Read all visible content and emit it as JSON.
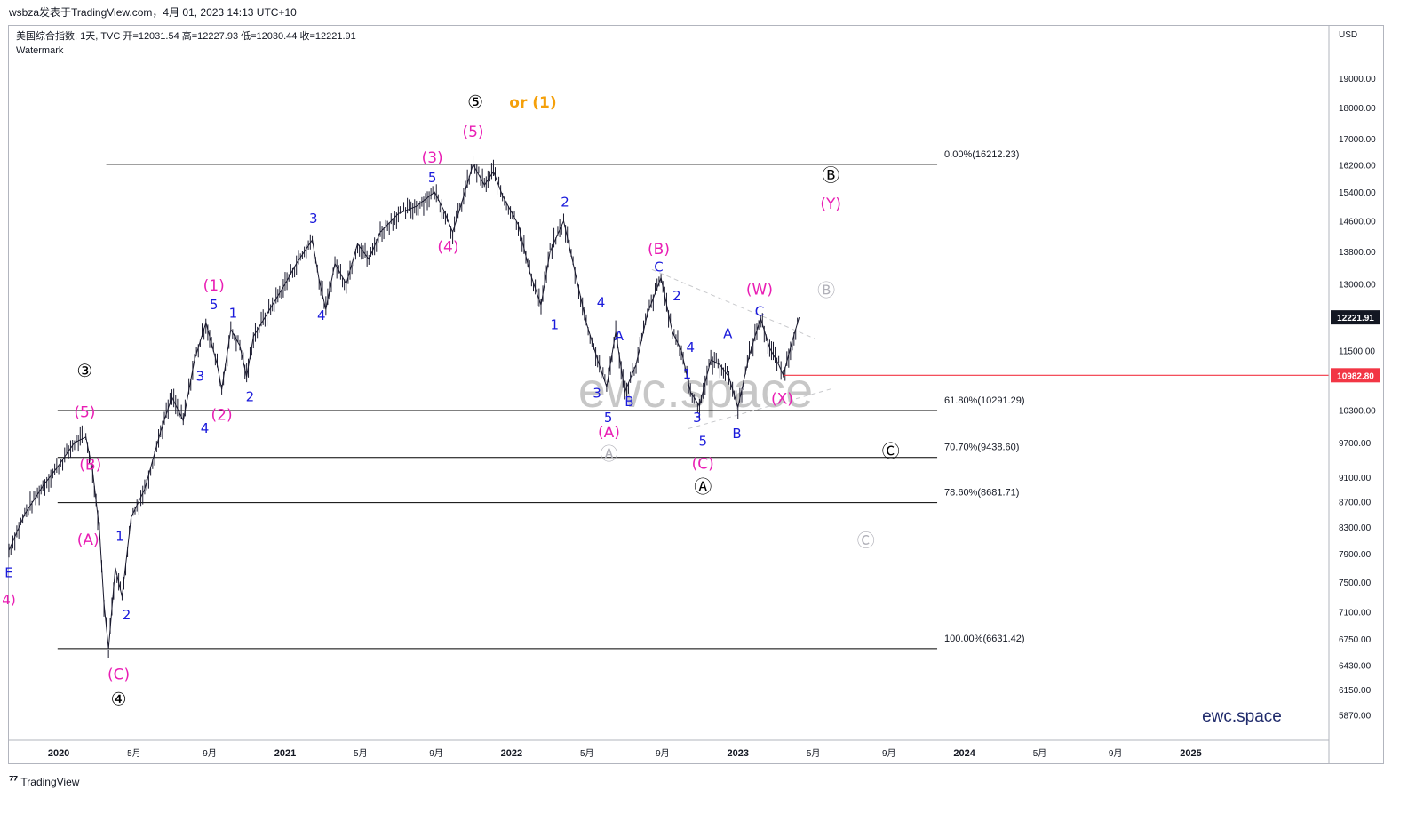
{
  "header": {
    "publisher_line": "wsbza发表于TradingView.com，4月 01, 2023 14:13 UTC+10"
  },
  "legend": {
    "symbol_line": "美国综合指数, 1天, TVC  开=12031.54  高=12227.93  低=12030.44  收=12221.91",
    "watermark_label": "Watermark"
  },
  "watermark": {
    "big": "ewc.space",
    "small": "ewc.space"
  },
  "footer": {
    "brand": "TradingView"
  },
  "colors": {
    "price_bars": "#1a1a2e",
    "fib_lines": "#000000",
    "wave_blue": "#1a1adb",
    "wave_magenta": "#e91eb4",
    "wave_orange": "#f5a00a",
    "wave_black": "#000000",
    "wave_gray": "#b0b0b8",
    "support_line": "#f23645",
    "last_price_bg": "#131722",
    "support_label_bg": "#f23645"
  },
  "chart_data": {
    "type": "line",
    "title": "美国综合指数",
    "currency": "USD",
    "interval": "1天",
    "x_axis": {
      "labels": [
        {
          "t": 2020.0,
          "label": "2020"
        },
        {
          "t": 2020.333,
          "label": "5月"
        },
        {
          "t": 2020.667,
          "label": "9月"
        },
        {
          "t": 2021.0,
          "label": "2021"
        },
        {
          "t": 2021.333,
          "label": "5月"
        },
        {
          "t": 2021.667,
          "label": "9月"
        },
        {
          "t": 2022.0,
          "label": "2022"
        },
        {
          "t": 2022.333,
          "label": "5月"
        },
        {
          "t": 2022.667,
          "label": "9月"
        },
        {
          "t": 2023.0,
          "label": "2023"
        },
        {
          "t": 2023.333,
          "label": "5月"
        },
        {
          "t": 2023.667,
          "label": "9月"
        },
        {
          "t": 2024.0,
          "label": "2024"
        },
        {
          "t": 2024.333,
          "label": "5月"
        },
        {
          "t": 2024.667,
          "label": "9月"
        },
        {
          "t": 2025.0,
          "label": "2025"
        }
      ],
      "range": [
        2019.78,
        2025.61
      ]
    },
    "y_axis": {
      "scale": "log",
      "range": [
        5600,
        20900
      ],
      "ticks": [
        5870,
        6150,
        6430,
        6750,
        7100,
        7500,
        7900,
        8300,
        8700,
        9100,
        9700,
        10300,
        11500,
        13000,
        13800,
        14600,
        15400,
        16200,
        17000,
        18000,
        19000
      ],
      "unit_label": "USD"
    },
    "price_path": [
      [
        2019.78,
        7950
      ],
      [
        2019.85,
        8500
      ],
      [
        2019.93,
        8950
      ],
      [
        2020.0,
        9300
      ],
      [
        2020.07,
        9700
      ],
      [
        2020.12,
        9800
      ],
      [
        2020.15,
        9200
      ],
      [
        2020.18,
        8250
      ],
      [
        2020.2,
        7200
      ],
      [
        2020.22,
        6631.42
      ],
      [
        2020.25,
        7700
      ],
      [
        2020.28,
        7300
      ],
      [
        2020.32,
        8450
      ],
      [
        2020.38,
        8900
      ],
      [
        2020.45,
        9900
      ],
      [
        2020.5,
        10550
      ],
      [
        2020.55,
        10100
      ],
      [
        2020.6,
        11300
      ],
      [
        2020.65,
        12100
      ],
      [
        2020.7,
        11200
      ],
      [
        2020.72,
        10700
      ],
      [
        2020.76,
        11950
      ],
      [
        2020.8,
        11600
      ],
      [
        2020.83,
        10950
      ],
      [
        2020.86,
        11800
      ],
      [
        2020.92,
        12300
      ],
      [
        2021.0,
        13000
      ],
      [
        2021.05,
        13500
      ],
      [
        2021.12,
        14100
      ],
      [
        2021.15,
        13100
      ],
      [
        2021.18,
        12400
      ],
      [
        2021.22,
        13500
      ],
      [
        2021.27,
        13000
      ],
      [
        2021.32,
        14000
      ],
      [
        2021.37,
        13600
      ],
      [
        2021.42,
        14300
      ],
      [
        2021.5,
        14800
      ],
      [
        2021.58,
        15000
      ],
      [
        2021.66,
        15400
      ],
      [
        2021.7,
        14900
      ],
      [
        2021.74,
        14300
      ],
      [
        2021.78,
        15100
      ],
      [
        2021.83,
        16212.23
      ],
      [
        2021.88,
        15600
      ],
      [
        2021.92,
        16000
      ],
      [
        2021.96,
        15300
      ],
      [
        2022.03,
        14500
      ],
      [
        2022.08,
        13300
      ],
      [
        2022.13,
        12500
      ],
      [
        2022.17,
        13800
      ],
      [
        2022.23,
        14600
      ],
      [
        2022.28,
        13300
      ],
      [
        2022.33,
        12100
      ],
      [
        2022.38,
        11300
      ],
      [
        2022.42,
        10750
      ],
      [
        2022.46,
        11900
      ],
      [
        2022.5,
        10650
      ],
      [
        2022.55,
        11200
      ],
      [
        2022.6,
        12300
      ],
      [
        2022.66,
        13150
      ],
      [
        2022.71,
        11900
      ],
      [
        2022.75,
        11500
      ],
      [
        2022.79,
        10650
      ],
      [
        2022.83,
        10380
      ],
      [
        2022.88,
        11300
      ],
      [
        2022.92,
        11200
      ],
      [
        2022.96,
        10950
      ],
      [
        2023.0,
        10350
      ],
      [
        2023.05,
        11400
      ],
      [
        2023.1,
        12200
      ],
      [
        2023.14,
        11550
      ],
      [
        2023.18,
        11200
      ],
      [
        2023.2,
        10982.8
      ],
      [
        2023.24,
        11700
      ],
      [
        2023.27,
        12221.91
      ]
    ],
    "last_price": {
      "value": 12221.91,
      "label": "12221.91"
    },
    "support_level": {
      "value": 10982.8,
      "label": "10982.80"
    },
    "fib_levels": [
      {
        "label": "0.00%(16212.23)",
        "value": 16212.23
      },
      {
        "label": "61.80%(10291.29)",
        "value": 10291.29
      },
      {
        "label": "70.70%(9438.60)",
        "value": 9438.6
      },
      {
        "label": "78.60%(8681.71)",
        "value": 8681.71
      },
      {
        "label": "100.00%(6631.42)",
        "value": 6631.42
      }
    ],
    "triangle_lines": [
      {
        "from": [
          2022.62,
          13350
        ],
        "to": [
          2023.34,
          11750
        ]
      },
      {
        "from": [
          2022.78,
          9950
        ],
        "to": [
          2023.42,
          10720
        ]
      }
    ],
    "wave_labels": [
      {
        "t": 2020.115,
        "v": 11050,
        "text": "③",
        "color": "black",
        "circled": true
      },
      {
        "t": 2020.115,
        "v": 10250,
        "text": "(5)",
        "color": "magenta"
      },
      {
        "t": 2020.14,
        "v": 9300,
        "text": "(B)",
        "color": "magenta"
      },
      {
        "t": 2020.13,
        "v": 8100,
        "text": "(A)",
        "color": "magenta"
      },
      {
        "t": 2020.27,
        "v": 8150,
        "text": "1",
        "color": "blue"
      },
      {
        "t": 2020.3,
        "v": 7050,
        "text": "2",
        "color": "blue"
      },
      {
        "t": 2020.265,
        "v": 6320,
        "text": "(C)",
        "color": "magenta"
      },
      {
        "t": 2020.265,
        "v": 6030,
        "text": "④",
        "color": "black",
        "circled": true
      },
      {
        "t": 2020.625,
        "v": 10950,
        "text": "3",
        "color": "blue"
      },
      {
        "t": 2020.645,
        "v": 9950,
        "text": "4",
        "color": "blue"
      },
      {
        "t": 2020.685,
        "v": 12500,
        "text": "5",
        "color": "blue"
      },
      {
        "t": 2020.685,
        "v": 12950,
        "text": "(1)",
        "color": "magenta"
      },
      {
        "t": 2020.77,
        "v": 12300,
        "text": "1",
        "color": "blue"
      },
      {
        "t": 2020.845,
        "v": 10550,
        "text": "2",
        "color": "blue"
      },
      {
        "t": 2020.72,
        "v": 10200,
        "text": "(2)",
        "color": "magenta"
      },
      {
        "t": 2021.125,
        "v": 14650,
        "text": "3",
        "color": "blue"
      },
      {
        "t": 2021.16,
        "v": 12250,
        "text": "4",
        "color": "blue"
      },
      {
        "t": 2021.65,
        "v": 15800,
        "text": "5",
        "color": "blue"
      },
      {
        "t": 2021.65,
        "v": 16400,
        "text": "(3)",
        "color": "magenta"
      },
      {
        "t": 2021.72,
        "v": 13900,
        "text": "(4)",
        "color": "magenta"
      },
      {
        "t": 2021.83,
        "v": 17200,
        "text": "(5)",
        "color": "magenta"
      },
      {
        "t": 2021.84,
        "v": 18150,
        "text": "⑤",
        "color": "black",
        "circled": true
      },
      {
        "t": 2021.99,
        "v": 18150,
        "text": "or (1)",
        "color": "orange"
      },
      {
        "t": 2022.236,
        "v": 15100,
        "text": "2",
        "color": "blue"
      },
      {
        "t": 2022.19,
        "v": 12050,
        "text": "1",
        "color": "blue"
      },
      {
        "t": 2022.395,
        "v": 12550,
        "text": "4",
        "color": "blue"
      },
      {
        "t": 2022.378,
        "v": 10620,
        "text": "3",
        "color": "blue"
      },
      {
        "t": 2022.427,
        "v": 10150,
        "text": "5",
        "color": "blue"
      },
      {
        "t": 2022.475,
        "v": 11800,
        "text": "A",
        "color": "blue"
      },
      {
        "t": 2022.52,
        "v": 10450,
        "text": "B",
        "color": "blue"
      },
      {
        "t": 2022.43,
        "v": 9880,
        "text": "(A)",
        "color": "magenta"
      },
      {
        "t": 2022.43,
        "v": 9480,
        "text": "Ⓐ",
        "color": "gray",
        "circled": true
      },
      {
        "t": 2022.65,
        "v": 13850,
        "text": "(B)",
        "color": "magenta"
      },
      {
        "t": 2022.65,
        "v": 13400,
        "text": "C",
        "color": "blue"
      },
      {
        "t": 2022.73,
        "v": 12700,
        "text": "2",
        "color": "blue"
      },
      {
        "t": 2022.79,
        "v": 11550,
        "text": "4",
        "color": "blue"
      },
      {
        "t": 2022.775,
        "v": 11000,
        "text": "1",
        "color": "blue"
      },
      {
        "t": 2022.82,
        "v": 10150,
        "text": "3",
        "color": "blue"
      },
      {
        "t": 2022.845,
        "v": 9720,
        "text": "5",
        "color": "blue"
      },
      {
        "t": 2022.845,
        "v": 9320,
        "text": "(C)",
        "color": "magenta"
      },
      {
        "t": 2022.845,
        "v": 8920,
        "text": "Ⓐ",
        "color": "black",
        "circled": true
      },
      {
        "t": 2022.955,
        "v": 11850,
        "text": "A",
        "color": "blue"
      },
      {
        "t": 2022.995,
        "v": 9850,
        "text": "B",
        "color": "blue"
      },
      {
        "t": 2023.095,
        "v": 12850,
        "text": "(W)",
        "color": "magenta"
      },
      {
        "t": 2023.095,
        "v": 12350,
        "text": "C",
        "color": "blue"
      },
      {
        "t": 2023.195,
        "v": 10500,
        "text": "(X)",
        "color": "magenta"
      },
      {
        "t": 2023.41,
        "v": 15850,
        "text": "Ⓑ",
        "color": "black",
        "circled": true
      },
      {
        "t": 2023.41,
        "v": 15050,
        "text": "(Y)",
        "color": "magenta"
      },
      {
        "t": 2023.39,
        "v": 12820,
        "text": "Ⓑ",
        "color": "gray",
        "circled": true
      },
      {
        "t": 2023.675,
        "v": 9530,
        "text": "Ⓒ",
        "color": "black",
        "circled": true
      },
      {
        "t": 2023.565,
        "v": 8080,
        "text": "Ⓒ",
        "color": "gray",
        "circled": true
      }
    ],
    "edge_labels": [
      {
        "t": 2019.78,
        "v": 7620,
        "text": "E",
        "color": "blue"
      },
      {
        "t": 2019.78,
        "v": 7250,
        "text": "4)",
        "color": "magenta"
      }
    ],
    "grid": false
  }
}
